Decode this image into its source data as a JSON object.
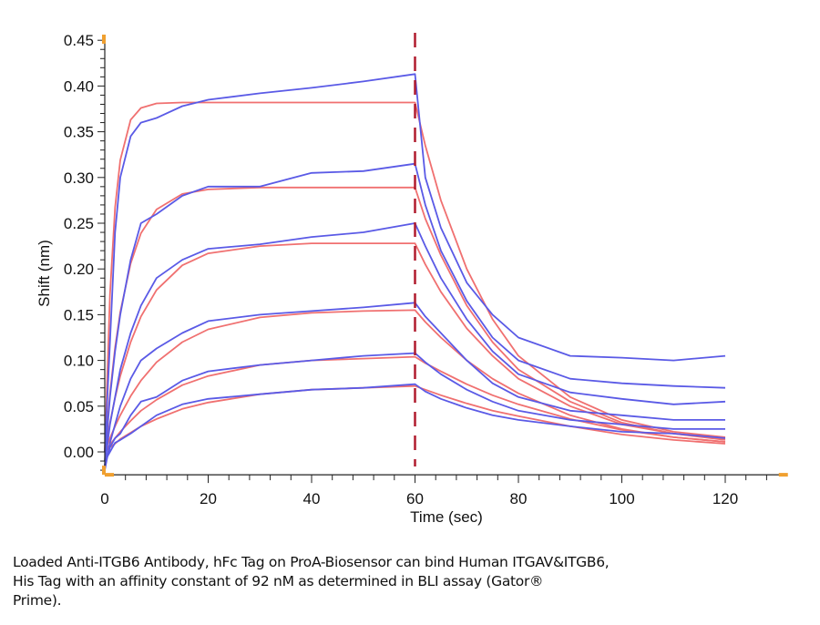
{
  "chart_data": {
    "type": "line",
    "xlabel": "Time (sec)",
    "ylabel": "Shift (nm)",
    "xlim": [
      0,
      130
    ],
    "ylim": [
      -0.025,
      0.45
    ],
    "xticks": [
      0,
      20,
      40,
      60,
      80,
      100,
      120
    ],
    "yticks": [
      0.0,
      0.05,
      0.1,
      0.15,
      0.2,
      0.25,
      0.3,
      0.35,
      0.4,
      0.45
    ],
    "xtick_labels": [
      "0",
      "20",
      "40",
      "60",
      "80",
      "100",
      "120"
    ],
    "ytick_labels": [
      "0.00",
      "0.05",
      "0.10",
      "0.15",
      "0.20",
      "0.25",
      "0.30",
      "0.35",
      "0.40",
      "0.45"
    ],
    "grid": false,
    "vline": {
      "x": 60,
      "style": "dashed",
      "color": "#b01c2e"
    },
    "colors": {
      "raw": "#5a5ae6",
      "fit": "#f07070",
      "axis_marker": "#f0a030"
    },
    "x": [
      0,
      1,
      2,
      3,
      5,
      7,
      10,
      15,
      20,
      30,
      40,
      50,
      60,
      62,
      65,
      70,
      75,
      80,
      90,
      100,
      110,
      120
    ],
    "raw_series": [
      {
        "values": [
          0,
          0.12,
          0.24,
          0.3,
          0.345,
          0.36,
          0.365,
          0.378,
          0.385,
          0.392,
          0.398,
          0.405,
          0.413,
          0.3,
          0.245,
          0.185,
          0.15,
          0.125,
          0.105,
          0.103,
          0.1,
          0.105
        ]
      },
      {
        "values": [
          -0.01,
          0.06,
          0.11,
          0.15,
          0.21,
          0.25,
          0.26,
          0.28,
          0.29,
          0.29,
          0.305,
          0.307,
          0.315,
          0.27,
          0.22,
          0.165,
          0.125,
          0.1,
          0.08,
          0.075,
          0.072,
          0.07
        ]
      },
      {
        "values": [
          -0.015,
          0.03,
          0.06,
          0.09,
          0.13,
          0.16,
          0.19,
          0.21,
          0.222,
          0.227,
          0.235,
          0.24,
          0.25,
          0.225,
          0.19,
          0.145,
          0.11,
          0.085,
          0.065,
          0.058,
          0.052,
          0.055
        ]
      },
      {
        "values": [
          -0.02,
          0.01,
          0.03,
          0.05,
          0.08,
          0.1,
          0.113,
          0.13,
          0.143,
          0.15,
          0.154,
          0.158,
          0.163,
          0.148,
          0.13,
          0.1,
          0.075,
          0.06,
          0.045,
          0.04,
          0.035,
          0.035
        ]
      },
      {
        "values": [
          -0.015,
          0.005,
          0.015,
          0.02,
          0.04,
          0.055,
          0.06,
          0.078,
          0.088,
          0.095,
          0.1,
          0.105,
          0.108,
          0.098,
          0.085,
          0.068,
          0.055,
          0.045,
          0.035,
          0.03,
          0.025,
          0.025
        ]
      },
      {
        "values": [
          -0.01,
          0,
          0.01,
          0.013,
          0.02,
          0.028,
          0.04,
          0.052,
          0.058,
          0.063,
          0.068,
          0.07,
          0.074,
          0.066,
          0.058,
          0.048,
          0.04,
          0.035,
          0.028,
          0.022,
          0.02,
          0.015
        ]
      }
    ],
    "fit_series": [
      {
        "values": [
          0,
          0.172,
          0.267,
          0.319,
          0.363,
          0.376,
          0.381,
          0.382,
          0.382,
          0.382,
          0.382,
          0.382,
          0.382,
          0.335,
          0.275,
          0.2,
          0.145,
          0.105,
          0.06,
          0.035,
          0.022,
          0.016
        ]
      },
      {
        "values": [
          0,
          0.064,
          0.114,
          0.153,
          0.206,
          0.239,
          0.265,
          0.282,
          0.287,
          0.289,
          0.289,
          0.289,
          0.289,
          0.255,
          0.215,
          0.16,
          0.12,
          0.09,
          0.055,
          0.032,
          0.02,
          0.014
        ]
      },
      {
        "values": [
          0,
          0.032,
          0.059,
          0.083,
          0.12,
          0.148,
          0.177,
          0.204,
          0.217,
          0.225,
          0.228,
          0.228,
          0.228,
          0.205,
          0.175,
          0.135,
          0.105,
          0.08,
          0.05,
          0.03,
          0.02,
          0.013
        ]
      },
      {
        "values": [
          0,
          0.015,
          0.028,
          0.04,
          0.061,
          0.078,
          0.098,
          0.12,
          0.134,
          0.147,
          0.152,
          0.154,
          0.155,
          0.142,
          0.125,
          0.1,
          0.08,
          0.064,
          0.04,
          0.025,
          0.016,
          0.011
        ]
      },
      {
        "values": [
          0,
          0.008,
          0.015,
          0.022,
          0.034,
          0.045,
          0.057,
          0.073,
          0.083,
          0.095,
          0.1,
          0.102,
          0.104,
          0.097,
          0.088,
          0.074,
          0.062,
          0.052,
          0.036,
          0.024,
          0.016,
          0.011
        ]
      },
      {
        "values": [
          0,
          0.005,
          0.009,
          0.014,
          0.021,
          0.028,
          0.036,
          0.047,
          0.054,
          0.063,
          0.068,
          0.07,
          0.072,
          0.068,
          0.062,
          0.053,
          0.045,
          0.039,
          0.028,
          0.019,
          0.013,
          0.009
        ]
      }
    ]
  },
  "caption": {
    "line1": "Loaded Anti-ITGB6 Antibody, hFc Tag on ProA-Biosensor can bind Human ITGAV&ITGB6,",
    "line2": "His Tag with an affinity constant of 92 nM as determined in BLI assay (Gator®",
    "line3": "Prime)."
  }
}
